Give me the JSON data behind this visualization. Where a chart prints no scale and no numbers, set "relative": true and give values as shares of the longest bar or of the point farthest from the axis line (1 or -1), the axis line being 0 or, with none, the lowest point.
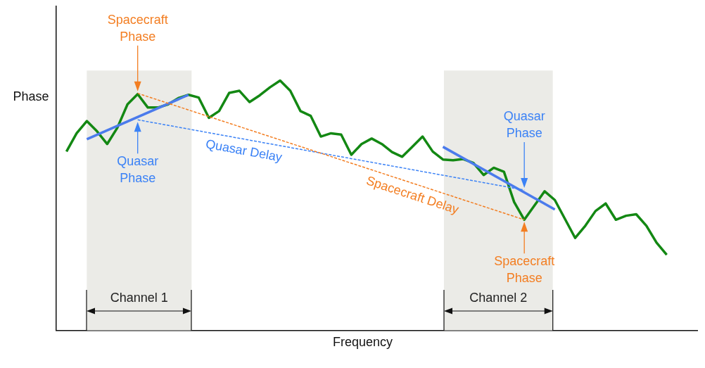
{
  "chart_data": {
    "type": "line",
    "relative": true,
    "xlabel": "Frequency",
    "ylabel": "Phase",
    "legend": false,
    "categories": [
      null,
      null,
      null,
      null,
      null,
      null,
      null,
      null,
      null,
      null,
      null,
      null,
      null,
      null,
      null,
      null,
      null,
      null,
      null,
      null,
      null,
      null,
      null,
      null,
      null,
      null,
      null,
      null,
      null,
      null,
      null,
      null,
      null,
      null,
      null,
      null,
      null,
      null,
      null,
      null,
      null,
      null,
      null,
      null,
      null,
      null,
      null,
      null,
      null,
      null,
      null,
      null,
      null,
      null,
      null,
      null,
      null,
      null,
      null,
      null,
      null,
      null,
      null,
      null
    ],
    "series": [
      {
        "color": "#138813",
        "values": [
          null,
          0.716,
          0.789,
          0.838,
          0.797,
          0.746,
          0.811,
          0.905,
          0.946,
          0.892,
          0.892,
          0.905,
          0.93,
          0.943,
          0.932,
          0.851,
          0.878,
          0.951,
          0.959,
          0.914,
          0.941,
          0.973,
          1.0,
          0.959,
          0.878,
          0.859,
          0.776,
          0.789,
          0.784,
          0.703,
          0.746,
          0.768,
          0.746,
          0.714,
          0.695,
          0.735,
          0.776,
          0.716,
          0.684,
          0.681,
          0.686,
          0.67,
          0.622,
          0.651,
          0.635,
          0.514,
          0.443,
          0.5,
          0.557,
          0.522,
          0.446,
          0.37,
          0.419,
          0.478,
          0.508,
          0.443,
          0.459,
          0.465,
          0.419,
          0.351,
          0.303,
          null,
          null,
          null
        ]
      },
      {
        "color": "#4b7bec",
        "values": [
          null,
          null,
          null,
          0.765,
          null,
          null,
          null,
          null,
          null,
          null,
          null,
          null,
          null,
          0.943,
          null,
          null,
          null,
          null,
          null,
          null,
          null,
          null,
          null,
          null,
          null,
          null,
          null,
          null,
          null,
          null,
          null,
          null,
          null,
          null,
          null,
          null,
          null,
          null,
          null,
          null,
          null,
          null,
          null,
          null,
          null,
          null,
          null,
          null,
          null,
          null,
          null,
          null,
          null,
          null,
          null,
          null,
          null,
          null,
          null,
          null,
          null,
          null,
          null,
          null
        ]
      },
      {
        "color": "#4b7bec",
        "values": [
          null,
          null,
          null,
          null,
          null,
          null,
          null,
          null,
          null,
          null,
          null,
          null,
          null,
          null,
          null,
          null,
          null,
          null,
          null,
          null,
          null,
          null,
          null,
          null,
          null,
          null,
          null,
          null,
          null,
          null,
          null,
          null,
          null,
          null,
          null,
          null,
          null,
          null,
          0.735,
          null,
          null,
          null,
          null,
          null,
          null,
          null,
          null,
          null,
          null,
          0.484,
          null,
          null,
          null,
          null,
          null,
          null,
          null,
          null,
          null,
          null,
          null,
          null,
          null,
          null
        ]
      },
      {
        "name": "Quasar Delay",
        "color": "#3b82f6",
        "line_style": "dashed",
        "values": [
          null,
          null,
          null,
          null,
          null,
          null,
          null,
          null,
          0.843,
          null,
          null,
          null,
          null,
          null,
          null,
          null,
          null,
          null,
          null,
          null,
          null,
          null,
          null,
          null,
          null,
          null,
          null,
          null,
          null,
          null,
          null,
          null,
          null,
          null,
          null,
          null,
          null,
          null,
          null,
          null,
          null,
          null,
          null,
          null,
          null,
          null,
          0.562,
          null,
          null,
          null,
          null,
          null,
          null,
          null,
          null,
          null,
          null,
          null,
          null,
          null,
          null,
          null,
          null,
          null
        ]
      },
      {
        "name": "Spacecraft Delay",
        "color": "#f37e22",
        "line_style": "dashed",
        "values": [
          null,
          null,
          null,
          null,
          null,
          null,
          null,
          null,
          0.949,
          null,
          null,
          null,
          null,
          null,
          null,
          null,
          null,
          null,
          null,
          null,
          null,
          null,
          null,
          null,
          null,
          null,
          null,
          null,
          null,
          null,
          null,
          null,
          null,
          null,
          null,
          null,
          null,
          null,
          null,
          null,
          null,
          null,
          null,
          null,
          null,
          null,
          0.443,
          null,
          null,
          null,
          null,
          null,
          null,
          null,
          null,
          null,
          null,
          null,
          null,
          null,
          null,
          null,
          null,
          null
        ]
      }
    ],
    "annotations": [
      "Spacecraft Phase",
      "Quasar Phase",
      "Quasar Phase",
      "Spacecraft Phase",
      "Channel 1",
      "Channel 2"
    ]
  }
}
